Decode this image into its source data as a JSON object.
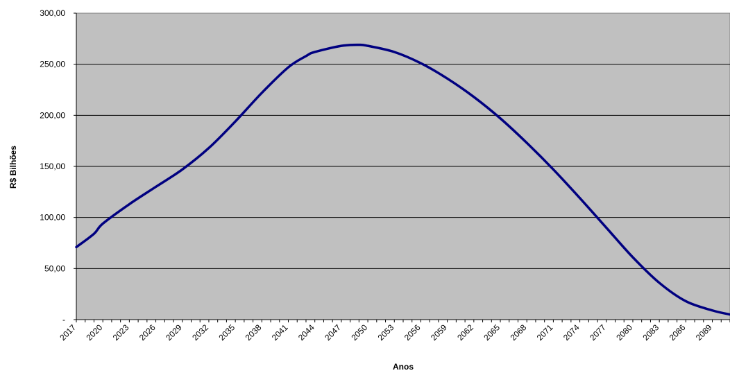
{
  "chart_data": {
    "type": "line",
    "title": "",
    "xlabel": "Anos",
    "ylabel": "R$ Bilhões",
    "ylim": [
      0,
      300
    ],
    "xlim": [
      2017,
      2091
    ],
    "y_ticks": [
      "-",
      "50,00",
      "100,00",
      "150,00",
      "200,00",
      "250,00",
      "300,00"
    ],
    "x_ticks": [
      "2017",
      "2020",
      "2023",
      "2026",
      "2029",
      "2032",
      "2035",
      "2038",
      "2041",
      "2044",
      "2047",
      "2050",
      "2053",
      "2056",
      "2059",
      "2062",
      "2065",
      "2068",
      "2071",
      "2074",
      "2077",
      "2080",
      "2083",
      "2086",
      "2089"
    ],
    "grid": true,
    "legend": "none",
    "colors": {
      "plot_background": "#c0c0c0",
      "line": "#000080",
      "grid": "#000000"
    },
    "series": [
      {
        "x": [
          2017,
          2019,
          2020,
          2023,
          2026,
          2029,
          2032,
          2035,
          2038,
          2041,
          2043,
          2044,
          2047,
          2049,
          2050,
          2053,
          2056,
          2059,
          2062,
          2065,
          2068,
          2071,
          2074,
          2077,
          2080,
          2083,
          2086,
          2089,
          2091
        ],
        "values": [
          71,
          84,
          94,
          113,
          130,
          147,
          168,
          194,
          222,
          247,
          258,
          262,
          268,
          269,
          268,
          262,
          251,
          236,
          218,
          197,
          173,
          147,
          119,
          90,
          61,
          36,
          18,
          9,
          5
        ]
      }
    ]
  }
}
